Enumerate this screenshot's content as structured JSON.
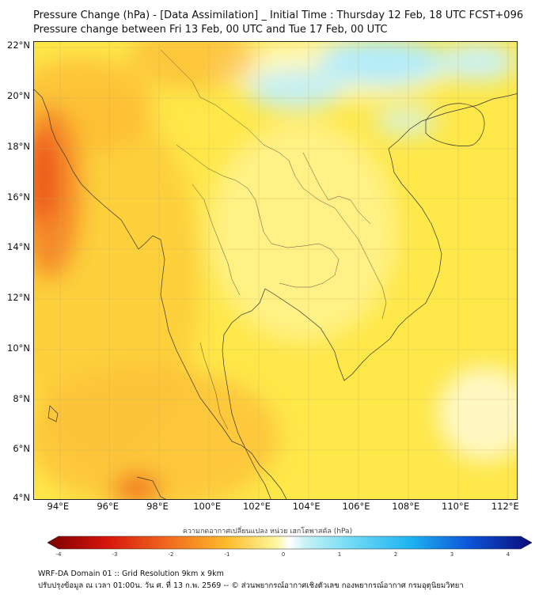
{
  "header": {
    "title_line1": "Pressure Change (hPa) - [Data Assimilation] _ Initial Time : Thursday 12 Feb, 18 UTC FCST+096",
    "title_line2": "Pressure change between Fri 13 Feb, 00 UTC and Tue 17 Feb, 00 UTC"
  },
  "map": {
    "lat_ticks": [
      "22°N",
      "20°N",
      "18°N",
      "16°N",
      "14°N",
      "12°N",
      "10°N",
      "8°N",
      "6°N",
      "4°N"
    ],
    "lon_ticks": [
      "94°E",
      "96°E",
      "98°E",
      "100°E",
      "102°E",
      "104°E",
      "106°E",
      "108°E",
      "110°E",
      "112°E"
    ],
    "lon_range": [
      93,
      112.5
    ],
    "lat_range": [
      4,
      22.2
    ],
    "background_color": "#fee84a",
    "warm_color": "#f0571e",
    "cool_color": "#b4ecfa"
  },
  "colorbar": {
    "label": "ความกดอากาศเปลี่ยนแปลง หน่วย เฮกโตพาสคัล (hPa)",
    "ticks": [
      "-4",
      "-3",
      "-2",
      "-1",
      "0",
      "1",
      "2",
      "3",
      "4"
    ],
    "range": [
      -4,
      4
    ]
  },
  "footer": {
    "line1": "WRF-DA Domain 01 :: Grid Resolution 9km x 9km",
    "line2": "ปรับปรุงข้อมูล ณ เวลา 01:00น. วัน ศ. ที่ 13 ก.พ. 2569 -- © ส่วนพยากรณ์อากาศเชิงตัวเลข กองพยากรณ์อากาศ กรมอุตุนิยมวิทยา"
  }
}
